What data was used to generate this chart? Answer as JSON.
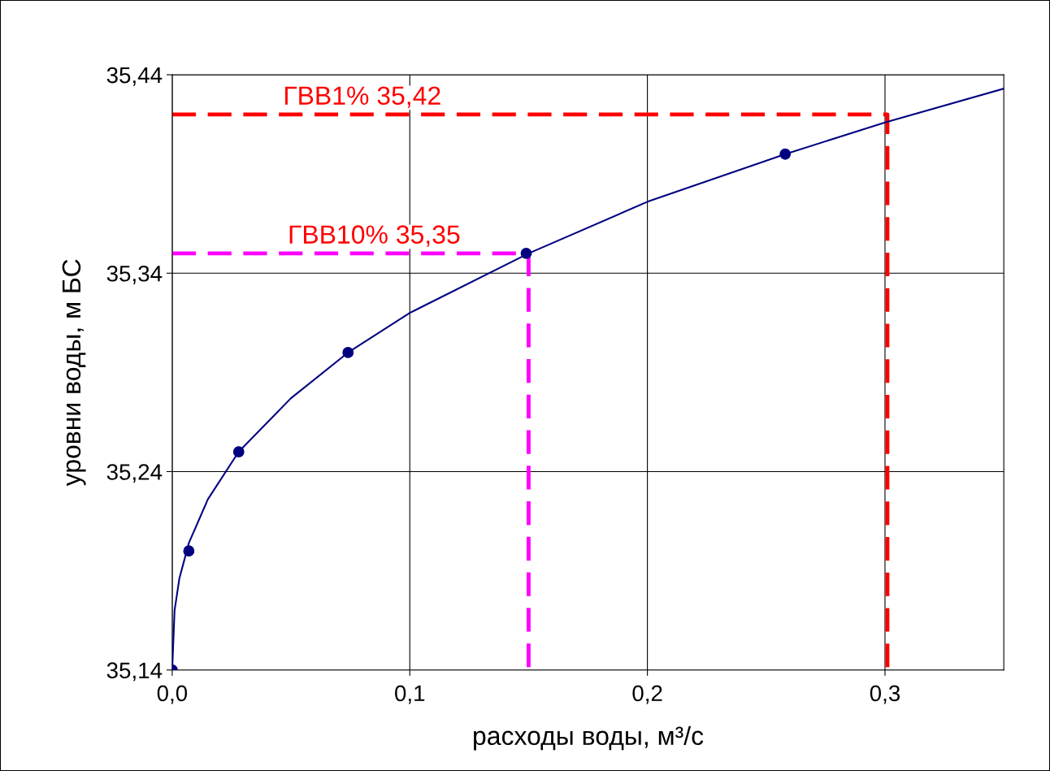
{
  "chart_data": {
    "type": "line",
    "xlabel": "расходы воды, м³/с",
    "ylabel": "уровни воды, м БС",
    "xlim": [
      0,
      0.35
    ],
    "ylim": [
      35.14,
      35.44
    ],
    "xticks": [
      {
        "value": 0,
        "label": "0,0"
      },
      {
        "value": 0.1,
        "label": "0,1"
      },
      {
        "value": 0.2,
        "label": "0,2"
      },
      {
        "value": 0.3,
        "label": "0,3"
      }
    ],
    "yticks": [
      {
        "value": 35.14,
        "label": "35,14"
      },
      {
        "value": 35.24,
        "label": "35,24"
      },
      {
        "value": 35.34,
        "label": "35,34"
      },
      {
        "value": 35.44,
        "label": "35,44"
      }
    ],
    "grid": true,
    "legend": false,
    "series": [
      {
        "color": "#000080",
        "marker": "none",
        "line_style": "solid",
        "x": [
          0,
          0.001,
          0.003,
          0.007,
          0.015,
          0.028,
          0.05,
          0.074,
          0.1,
          0.15,
          0.2,
          0.258,
          0.3,
          0.35
        ],
        "values": [
          35.14,
          35.17,
          35.186,
          35.204,
          35.226,
          35.25,
          35.277,
          35.3,
          35.32,
          35.35,
          35.376,
          35.4,
          35.416,
          35.433
        ]
      },
      {
        "type": "scatter",
        "color": "#000080",
        "marker": "circle",
        "x": [
          0,
          0.007,
          0.028,
          0.074,
          0.149,
          0.258
        ],
        "values": [
          35.14,
          35.2,
          35.25,
          35.3,
          35.35,
          35.4
        ]
      },
      {
        "color": "#ff0000",
        "marker": "none",
        "line_style": "dashed",
        "x": [
          0,
          0.301,
          0.301
        ],
        "values": [
          35.42,
          35.42,
          35.14
        ]
      },
      {
        "color": "#ff00ff",
        "marker": "none",
        "line_style": "dashed",
        "x": [
          0,
          0.15,
          0.15
        ],
        "values": [
          35.35,
          35.35,
          35.14
        ]
      }
    ],
    "annotations": [
      {
        "text": "ГВВ1% 35,42",
        "x": 0.08,
        "y": 35.42
      },
      {
        "text": "ГВВ10% 35,35",
        "x": 0.085,
        "y": 35.35
      }
    ]
  }
}
